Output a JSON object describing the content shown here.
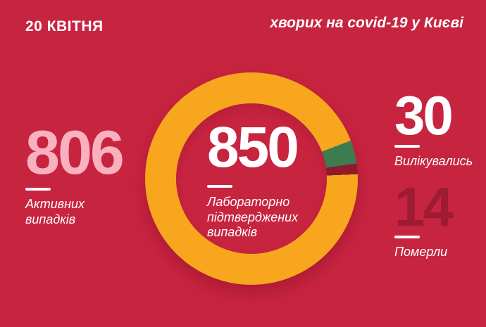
{
  "header": {
    "date": "20 КВІТНЯ",
    "title": "хворих на covid-19 у Києві"
  },
  "stats": {
    "active": {
      "value": "806",
      "label": "Активних\nвипадків"
    },
    "confirmed": {
      "value": "850",
      "label": "Лабораторно\nпідтверджених\nвипадків"
    },
    "recovered": {
      "value": "30",
      "label": "Вилікувались"
    },
    "died": {
      "value": "14",
      "label": "Померли"
    }
  },
  "colors": {
    "background": "#C72440",
    "text": "#FFFFFF",
    "active_number": "#F9B0BF",
    "died_number": "#9D1C32",
    "donut_active": "#F7A61E",
    "donut_recovered": "#3D7C50",
    "donut_died": "#8F1A2C"
  },
  "chart_data": {
    "type": "pie",
    "donut": true,
    "title": "хворих на covid-19 у Києві",
    "center_value": 850,
    "center_label": "Лабораторно підтверджених випадків",
    "total": 850,
    "start_angle_deg": 69,
    "segment_order": [
      1,
      2,
      0
    ],
    "legend_position": "none",
    "segments": [
      {
        "name": "Активних випадків",
        "value": 806,
        "color": "#F7A61E"
      },
      {
        "name": "Вилікувались",
        "value": 30,
        "color": "#3D7C50"
      },
      {
        "name": "Померли",
        "value": 14,
        "color": "#8F1A2C"
      }
    ]
  }
}
